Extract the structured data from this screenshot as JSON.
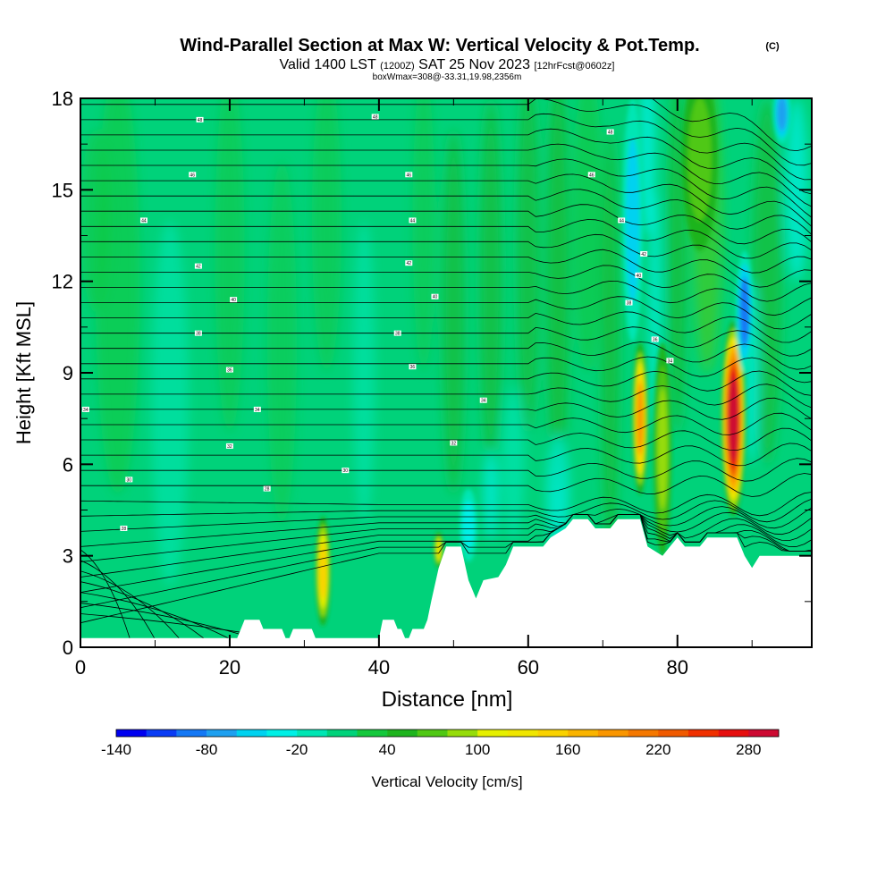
{
  "chart_data": {
    "type": "heatmap",
    "title": "Wind-Parallel Section at Max W: Vertical Velocity & Pot.Temp.",
    "copyright": "(C)",
    "subtitle_main": "Valid 1400 LST",
    "subtitle_utc": "(1200Z)",
    "subtitle_date": "SAT 25 Nov 2023",
    "subtitle_fcst": "[12hrFcst@0602z]",
    "subtitle_box": "boxWmax=308@-33.31,19.98,2356m",
    "xlabel": "Distance [nm]",
    "ylabel": "Height [Kft MSL]",
    "xlim": [
      0,
      98
    ],
    "ylim": [
      0,
      18
    ],
    "xticks": [
      "0",
      "20",
      "40",
      "60",
      "80"
    ],
    "yticks": [
      "0",
      "3",
      "6",
      "9",
      "12",
      "15",
      "18"
    ],
    "colorbar": {
      "label": "Vertical Velocity [cm/s]",
      "tick_labels": [
        "-140",
        "-80",
        "-20",
        "40",
        "100",
        "160",
        "220",
        "280"
      ],
      "colors": [
        "#0000f0",
        "#0a3cf5",
        "#1478f5",
        "#1ea0f0",
        "#00d2f0",
        "#00f0e6",
        "#00e6b4",
        "#00d27a",
        "#14c83c",
        "#1eb41e",
        "#50c814",
        "#96dc0a",
        "#e6f000",
        "#f0e600",
        "#fad200",
        "#fab400",
        "#fa9600",
        "#f57800",
        "#f05a00",
        "#f03000",
        "#e60f0f",
        "#cd0a32"
      ]
    },
    "terrain_kft": [
      [
        0,
        0.3
      ],
      [
        12,
        0.3
      ],
      [
        21,
        0.3
      ],
      [
        22,
        0.9
      ],
      [
        24,
        0.9
      ],
      [
        24.5,
        0.6
      ],
      [
        27,
        0.6
      ],
      [
        27.5,
        0.3
      ],
      [
        28,
        0.3
      ],
      [
        28.5,
        0.6
      ],
      [
        31,
        0.6
      ],
      [
        31.5,
        0.3
      ],
      [
        40,
        0.3
      ],
      [
        40.5,
        0.9
      ],
      [
        42,
        0.9
      ],
      [
        42.5,
        0.6
      ],
      [
        43,
        0.6
      ],
      [
        43.5,
        0.3
      ],
      [
        44,
        0.3
      ],
      [
        44.5,
        0.6
      ],
      [
        46,
        0.6
      ],
      [
        46.5,
        0.9
      ],
      [
        47,
        1.5
      ],
      [
        48,
        2.6
      ],
      [
        49,
        3.3
      ],
      [
        51,
        3.3
      ],
      [
        52,
        2.2
      ],
      [
        53,
        1.6
      ],
      [
        54,
        2.2
      ],
      [
        56,
        2.3
      ],
      [
        57,
        2.7
      ],
      [
        58,
        3.3
      ],
      [
        62,
        3.3
      ],
      [
        63,
        3.6
      ],
      [
        65,
        3.9
      ],
      [
        66,
        4.2
      ],
      [
        68,
        4.2
      ],
      [
        69,
        3.9
      ],
      [
        71,
        3.9
      ],
      [
        72,
        4.2
      ],
      [
        75,
        4.2
      ],
      [
        76,
        3.3
      ],
      [
        78,
        3.0
      ],
      [
        79,
        3.3
      ],
      [
        80,
        3.6
      ],
      [
        81,
        3.3
      ],
      [
        83,
        3.3
      ],
      [
        84,
        3.6
      ],
      [
        88,
        3.6
      ],
      [
        89,
        3.0
      ],
      [
        90,
        2.6
      ],
      [
        91,
        3.0
      ],
      [
        98,
        3.0
      ]
    ],
    "velocity_features": [
      {
        "x": 87.5,
        "y": 7.5,
        "width_nm": 0.8,
        "height_kft": 3.2,
        "w": 300
      },
      {
        "x": 75,
        "y": 7.5,
        "width_nm": 0.5,
        "height_kft": 2.5,
        "w": 180
      },
      {
        "x": 32.5,
        "y": 2.5,
        "width_nm": 0.5,
        "height_kft": 1.8,
        "w": 140
      },
      {
        "x": 48,
        "y": 3.2,
        "width_nm": 0.3,
        "height_kft": 0.6,
        "w": 120
      },
      {
        "x": 78,
        "y": 6.5,
        "width_nm": 0.6,
        "height_kft": 3.5,
        "w": 80
      },
      {
        "x": 74,
        "y": 14,
        "width_nm": 0.7,
        "height_kft": 4,
        "w": -60
      },
      {
        "x": 89,
        "y": 11,
        "width_nm": 0.6,
        "height_kft": 2,
        "w": -100
      },
      {
        "x": 94,
        "y": 17.5,
        "width_nm": 0.6,
        "height_kft": 1,
        "w": -90
      },
      {
        "x": 83,
        "y": 16,
        "width_nm": 1.2,
        "height_kft": 3,
        "w": 60
      },
      {
        "x": 52,
        "y": 4,
        "width_nm": 0.6,
        "height_kft": 1.2,
        "w": -40
      }
    ],
    "theta_labels": [
      {
        "x": 16,
        "y": 17.3,
        "text": "48"
      },
      {
        "x": 39.5,
        "y": 17.4,
        "text": "48"
      },
      {
        "x": 71,
        "y": 16.9,
        "text": "48"
      },
      {
        "x": 15,
        "y": 15.5,
        "text": "46"
      },
      {
        "x": 44,
        "y": 15.5,
        "text": "46"
      },
      {
        "x": 68.5,
        "y": 15.5,
        "text": "46"
      },
      {
        "x": 8.5,
        "y": 14,
        "text": "44"
      },
      {
        "x": 44.5,
        "y": 14,
        "text": "44"
      },
      {
        "x": 72.5,
        "y": 14,
        "text": "44"
      },
      {
        "x": 15.8,
        "y": 12.5,
        "text": "42"
      },
      {
        "x": 44,
        "y": 12.6,
        "text": "42"
      },
      {
        "x": 75.5,
        "y": 12.9,
        "text": "42"
      },
      {
        "x": 20.5,
        "y": 11.4,
        "text": "40"
      },
      {
        "x": 47.5,
        "y": 11.5,
        "text": "40"
      },
      {
        "x": 74.8,
        "y": 12.2,
        "text": "40"
      },
      {
        "x": 15.8,
        "y": 10.3,
        "text": "38"
      },
      {
        "x": 42.5,
        "y": 10.3,
        "text": "38"
      },
      {
        "x": 73.5,
        "y": 11.3,
        "text": "38"
      },
      {
        "x": 20,
        "y": 9.1,
        "text": "36"
      },
      {
        "x": 44.5,
        "y": 9.2,
        "text": "36"
      },
      {
        "x": 77,
        "y": 10.1,
        "text": "36"
      },
      {
        "x": 0.7,
        "y": 7.8,
        "text": "34"
      },
      {
        "x": 23.7,
        "y": 7.8,
        "text": "34"
      },
      {
        "x": 54,
        "y": 8.1,
        "text": "34"
      },
      {
        "x": 79,
        "y": 9.4,
        "text": "34"
      },
      {
        "x": 20,
        "y": 6.6,
        "text": "32"
      },
      {
        "x": 50,
        "y": 6.7,
        "text": "32"
      },
      {
        "x": 6.5,
        "y": 5.5,
        "text": "30"
      },
      {
        "x": 35.5,
        "y": 5.8,
        "text": "30"
      },
      {
        "x": 25,
        "y": 5.2,
        "text": "28"
      },
      {
        "x": 5.8,
        "y": 3.9,
        "text": "28"
      }
    ]
  }
}
